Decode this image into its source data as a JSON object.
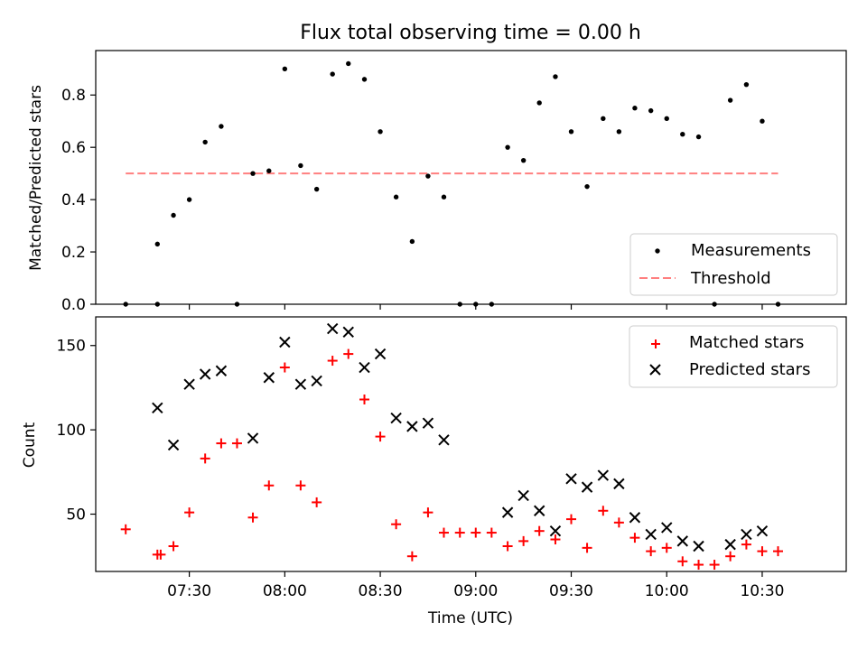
{
  "chart_data": [
    {
      "type": "scatter",
      "title": "Flux total observing time = 0.00 h",
      "xlabel": "",
      "ylabel": "Matched/Predicted stars",
      "xlim": [
        7.01,
        10.94
      ],
      "ylim": [
        0,
        0.97
      ],
      "yticks": [
        0.0,
        0.2,
        0.4,
        0.6,
        0.8
      ],
      "ytick_labels": [
        "0.0",
        "0.2",
        "0.4",
        "0.6",
        "0.8"
      ],
      "legend_position": "lower-right",
      "series": [
        {
          "name": "Measurements",
          "marker": "dot",
          "color": "#000000",
          "points": [
            [
              7.167,
              0.0
            ],
            [
              7.333,
              0.23
            ],
            [
              7.333,
              0.0
            ],
            [
              7.417,
              0.34
            ],
            [
              7.5,
              0.4
            ],
            [
              7.583,
              0.62
            ],
            [
              7.667,
              0.68
            ],
            [
              7.75,
              0.0
            ],
            [
              7.833,
              0.5
            ],
            [
              7.917,
              0.51
            ],
            [
              8.0,
              0.9
            ],
            [
              8.083,
              0.53
            ],
            [
              8.167,
              0.44
            ],
            [
              8.25,
              0.88
            ],
            [
              8.333,
              0.92
            ],
            [
              8.417,
              0.86
            ],
            [
              8.5,
              0.66
            ],
            [
              8.583,
              0.41
            ],
            [
              8.667,
              0.24
            ],
            [
              8.75,
              0.49
            ],
            [
              8.833,
              0.41
            ],
            [
              8.917,
              0.0
            ],
            [
              9.0,
              0.0
            ],
            [
              9.083,
              0.0
            ],
            [
              9.167,
              0.6
            ],
            [
              9.25,
              0.55
            ],
            [
              9.333,
              0.77
            ],
            [
              9.417,
              0.87
            ],
            [
              9.5,
              0.66
            ],
            [
              9.583,
              0.45
            ],
            [
              9.667,
              0.71
            ],
            [
              9.75,
              0.66
            ],
            [
              9.833,
              0.75
            ],
            [
              9.917,
              0.74
            ],
            [
              10.0,
              0.71
            ],
            [
              10.083,
              0.65
            ],
            [
              10.167,
              0.64
            ],
            [
              10.25,
              0.0
            ],
            [
              10.333,
              0.78
            ],
            [
              10.417,
              0.84
            ],
            [
              10.5,
              0.7
            ],
            [
              10.583,
              0.0
            ]
          ]
        },
        {
          "name": "Threshold",
          "marker": "dashed-line",
          "color": "#ff7f7f",
          "x": [
            7.167,
            10.583
          ],
          "y": [
            0.5,
            0.5
          ]
        }
      ]
    },
    {
      "type": "scatter",
      "title": "",
      "xlabel": "Time (UTC)",
      "ylabel": "Count",
      "xlim": [
        7.01,
        10.94
      ],
      "ylim": [
        16,
        167
      ],
      "yticks": [
        50,
        100,
        150
      ],
      "ytick_labels": [
        "50",
        "100",
        "150"
      ],
      "xticks": [
        7.5,
        8.0,
        8.5,
        9.0,
        9.5,
        10.0,
        10.5
      ],
      "xtick_labels": [
        "07:30",
        "08:00",
        "08:30",
        "09:00",
        "09:30",
        "10:00",
        "10:30"
      ],
      "legend_position": "upper-right",
      "series": [
        {
          "name": "Matched stars",
          "marker": "plus",
          "color": "#ff0000",
          "points": [
            [
              7.167,
              41
            ],
            [
              7.333,
              26
            ],
            [
              7.35,
              26
            ],
            [
              7.417,
              31
            ],
            [
              7.5,
              51
            ],
            [
              7.583,
              83
            ],
            [
              7.667,
              92
            ],
            [
              7.75,
              92
            ],
            [
              7.833,
              48
            ],
            [
              7.917,
              67
            ],
            [
              8.0,
              137
            ],
            [
              8.083,
              67
            ],
            [
              8.167,
              57
            ],
            [
              8.25,
              141
            ],
            [
              8.333,
              145
            ],
            [
              8.417,
              118
            ],
            [
              8.5,
              96
            ],
            [
              8.583,
              44
            ],
            [
              8.667,
              25
            ],
            [
              8.75,
              51
            ],
            [
              8.833,
              39
            ],
            [
              8.917,
              39
            ],
            [
              9.0,
              39
            ],
            [
              9.083,
              39
            ],
            [
              9.167,
              31
            ],
            [
              9.25,
              34
            ],
            [
              9.333,
              40
            ],
            [
              9.417,
              35
            ],
            [
              9.5,
              47
            ],
            [
              9.583,
              30
            ],
            [
              9.667,
              52
            ],
            [
              9.75,
              45
            ],
            [
              9.833,
              36
            ],
            [
              9.917,
              28
            ],
            [
              10.0,
              30
            ],
            [
              10.083,
              22
            ],
            [
              10.167,
              20
            ],
            [
              10.25,
              20
            ],
            [
              10.333,
              25
            ],
            [
              10.417,
              32
            ],
            [
              10.5,
              28
            ],
            [
              10.583,
              28
            ]
          ]
        },
        {
          "name": "Predicted stars",
          "marker": "x",
          "color": "#000000",
          "points": [
            [
              7.333,
              113
            ],
            [
              7.417,
              91
            ],
            [
              7.5,
              127
            ],
            [
              7.583,
              133
            ],
            [
              7.667,
              135
            ],
            [
              7.833,
              95
            ],
            [
              7.917,
              131
            ],
            [
              8.0,
              152
            ],
            [
              8.083,
              127
            ],
            [
              8.167,
              129
            ],
            [
              8.25,
              160
            ],
            [
              8.333,
              158
            ],
            [
              8.417,
              137
            ],
            [
              8.5,
              145
            ],
            [
              8.583,
              107
            ],
            [
              8.667,
              102
            ],
            [
              8.75,
              104
            ],
            [
              8.833,
              94
            ],
            [
              9.167,
              51
            ],
            [
              9.25,
              61
            ],
            [
              9.333,
              52
            ],
            [
              9.417,
              40
            ],
            [
              9.5,
              71
            ],
            [
              9.583,
              66
            ],
            [
              9.667,
              73
            ],
            [
              9.75,
              68
            ],
            [
              9.833,
              48
            ],
            [
              9.917,
              38
            ],
            [
              10.0,
              42
            ],
            [
              10.083,
              34
            ],
            [
              10.167,
              31
            ],
            [
              10.333,
              32
            ],
            [
              10.417,
              38
            ],
            [
              10.5,
              40
            ]
          ]
        }
      ]
    }
  ]
}
